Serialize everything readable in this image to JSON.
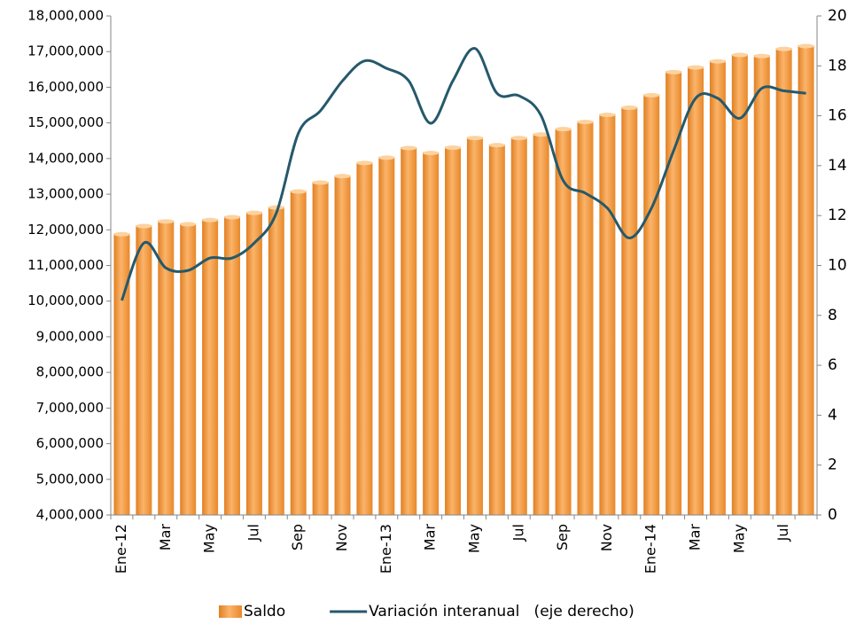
{
  "chart_data": {
    "type": "bar_line",
    "categories": [
      "Ene-12",
      null,
      "Mar",
      null,
      "May",
      null,
      "Jul",
      null,
      "Sep",
      null,
      "Nov",
      null,
      "Ene-13",
      null,
      "Mar",
      null,
      "May",
      null,
      "Jul",
      null,
      "Sep",
      null,
      "Nov",
      null,
      "Ene-14",
      null,
      "Mar",
      null,
      "May",
      null,
      "Jul",
      null
    ],
    "series": [
      {
        "name": "Saldo",
        "type": "bar",
        "color": "#f39a3e",
        "axis": "y",
        "values": [
          11900000,
          12130000,
          12260000,
          12180000,
          12300000,
          12380000,
          12500000,
          12650000,
          13100000,
          13350000,
          13530000,
          13900000,
          14050000,
          14320000,
          14180000,
          14330000,
          14600000,
          14400000,
          14600000,
          14700000,
          14850000,
          15050000,
          15250000,
          15450000,
          15800000,
          16450000,
          16580000,
          16750000,
          16930000,
          16900000,
          17100000,
          17180000
        ]
      },
      {
        "name": "Variación interanual   (eje derecho)",
        "type": "line",
        "color": "#25596b",
        "axis": "y2",
        "values": [
          8.6,
          10.9,
          9.9,
          9.8,
          10.3,
          10.3,
          10.9,
          12.1,
          15.3,
          16.2,
          17.4,
          18.2,
          17.9,
          17.4,
          15.7,
          17.4,
          18.7,
          16.9,
          16.8,
          16.0,
          13.4,
          12.9,
          12.3,
          11.1,
          12.3,
          14.6,
          16.7,
          16.7,
          15.9,
          17.1,
          17.0,
          16.9
        ]
      }
    ],
    "ylim": [
      4000000,
      18000000
    ],
    "yticks": [
      {
        "value": 4000000,
        "label": "4,000,000"
      },
      {
        "value": 5000000,
        "label": "5,000,000"
      },
      {
        "value": 6000000,
        "label": "6,000,000"
      },
      {
        "value": 7000000,
        "label": "7,000,000"
      },
      {
        "value": 8000000,
        "label": "8,000,000"
      },
      {
        "value": 9000000,
        "label": "9,000,000"
      },
      {
        "value": 10000000,
        "label": "10,000,000"
      },
      {
        "value": 11000000,
        "label": "11,000,000"
      },
      {
        "value": 12000000,
        "label": "12,000,000"
      },
      {
        "value": 13000000,
        "label": "13,000,000"
      },
      {
        "value": 14000000,
        "label": "14,000,000"
      },
      {
        "value": 15000000,
        "label": "15,000,000"
      },
      {
        "value": 16000000,
        "label": "16,000,000"
      },
      {
        "value": 17000000,
        "label": "17,000,000"
      },
      {
        "value": 18000000,
        "label": "18,000,000"
      }
    ],
    "y2lim": [
      0,
      20
    ],
    "y2ticks": [
      0,
      2,
      4,
      6,
      8,
      10,
      12,
      14,
      16,
      18,
      20
    ],
    "legend": "bottom"
  }
}
